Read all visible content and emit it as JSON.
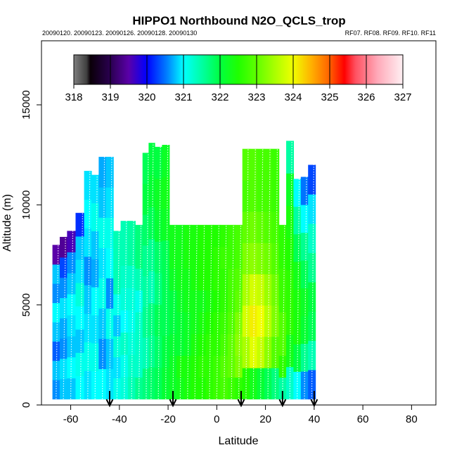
{
  "chart_data": {
    "type": "heatmap",
    "title": "HIPPO1 Northbound N2O_QCLS_trop",
    "subtitle_left": "20090120. 20090123. 20090126. 20090128. 20090130",
    "subtitle_right": "RF07. RF08. RF09. RF10. RF11",
    "xlabel": "Latitude",
    "ylabel": "Altitude (m)",
    "xlim": [
      -72,
      90
    ],
    "ylim": [
      0,
      18200
    ],
    "x_ticks": [
      -60,
      -40,
      -20,
      0,
      20,
      40,
      60,
      80
    ],
    "x_tick_labels": [
      "-60",
      "-40",
      "-20",
      "0",
      "20",
      "40",
      "60",
      "80"
    ],
    "y_ticks": [
      0,
      5000,
      10000,
      15000
    ],
    "y_tick_labels": [
      "0",
      "5000",
      "10000",
      "15000"
    ],
    "colorbar": {
      "min": 318,
      "max": 327,
      "ticks": [
        318,
        319,
        320,
        321,
        322,
        323,
        324,
        325,
        326,
        327
      ],
      "tick_labels": [
        "318",
        "319",
        "320",
        "321",
        "322",
        "323",
        "324",
        "325",
        "326",
        "327"
      ],
      "stops": [
        {
          "v": 318.0,
          "c": "#7f7f7f"
        },
        {
          "v": 318.35,
          "c": "#404040"
        },
        {
          "v": 318.45,
          "c": "#0a0008"
        },
        {
          "v": 319.0,
          "c": "#2a0050"
        },
        {
          "v": 319.5,
          "c": "#5a00a8"
        },
        {
          "v": 320.0,
          "c": "#0000ff"
        },
        {
          "v": 320.55,
          "c": "#0080ff"
        },
        {
          "v": 321.0,
          "c": "#00ffff"
        },
        {
          "v": 321.6,
          "c": "#00ff90"
        },
        {
          "v": 322.0,
          "c": "#00ff40"
        },
        {
          "v": 322.5,
          "c": "#20ff00"
        },
        {
          "v": 323.0,
          "c": "#60ff00"
        },
        {
          "v": 323.5,
          "c": "#aaff00"
        },
        {
          "v": 324.0,
          "c": "#f0ff00"
        },
        {
          "v": 324.5,
          "c": "#ffb000"
        },
        {
          "v": 325.0,
          "c": "#ff6000"
        },
        {
          "v": 325.4,
          "c": "#ff0000"
        },
        {
          "v": 325.7,
          "c": "#ff5060"
        },
        {
          "v": 326.3,
          "c": "#ffa8b8"
        },
        {
          "v": 327.0,
          "c": "#fff0f3"
        }
      ]
    },
    "arrow_latitudes": [
      -44,
      -18,
      10,
      27,
      40
    ],
    "profile_latitudes": [
      -66,
      -63,
      -60,
      -56,
      -53,
      -50,
      -47,
      -44,
      -41,
      -38,
      -35,
      -32,
      -29,
      -27,
      -24,
      -21,
      -18,
      -15,
      -12,
      -9,
      -6,
      -3,
      0,
      3,
      6,
      9,
      12,
      15,
      18,
      21,
      24,
      27,
      30,
      33,
      36,
      39
    ],
    "max_altitudes": [
      8000,
      8400,
      8700,
      9600,
      11700,
      11500,
      12400,
      12400,
      8700,
      9200,
      9200,
      9000,
      12600,
      13100,
      12900,
      13000,
      9000,
      9000,
      9000,
      9000,
      9000,
      9000,
      9000,
      9000,
      9000,
      9000,
      12800,
      12800,
      12800,
      12800,
      12800,
      9000,
      13200,
      11300,
      11400,
      12000
    ],
    "n2o_ppb": [
      [
        320.6,
        320.8,
        320.4,
        320.8,
        321.0,
        320.6,
        320.8,
        319.5
      ],
      [
        320.8,
        320.9,
        320.6,
        320.7,
        320.9,
        320.6,
        320.3,
        319.4
      ],
      [
        320.8,
        321.0,
        320.8,
        320.9,
        321.0,
        320.8,
        320.6,
        319.6
      ],
      [
        321.0,
        321.1,
        320.8,
        321.0,
        321.2,
        320.9,
        320.8,
        320.2
      ],
      [
        320.9,
        321.1,
        320.9,
        320.8,
        320.6,
        320.9,
        321.0,
        320.9
      ],
      [
        321.0,
        321.1,
        320.9,
        321.0,
        320.7,
        320.8,
        321.1,
        320.9
      ],
      [
        321.0,
        320.6,
        320.8,
        321.1,
        320.9,
        321.1,
        320.8,
        320.7
      ],
      [
        320.9,
        320.8,
        321.1,
        320.6,
        321.0,
        321.1,
        320.9,
        320.8
      ],
      [
        321.1,
        320.9,
        321.2,
        320.8,
        321.1,
        321.4,
        321.4,
        321.4
      ],
      [
        321.2,
        321.1,
        321.3,
        321.0,
        321.2,
        321.3,
        321.4,
        321.4
      ],
      [
        321.4,
        321.3,
        321.2,
        321.1,
        321.2,
        321.3,
        321.5,
        321.5
      ],
      [
        321.6,
        321.3,
        321.3,
        321.3,
        321.1,
        321.4,
        321.7,
        321.7
      ],
      [
        321.7,
        321.4,
        321.6,
        321.5,
        321.6,
        321.8,
        322.0,
        321.9
      ],
      [
        321.8,
        321.6,
        321.7,
        321.4,
        321.6,
        321.9,
        322.1,
        322.0
      ],
      [
        321.9,
        321.8,
        321.9,
        321.7,
        321.8,
        322.1,
        322.2,
        322.0
      ],
      [
        322.1,
        322.0,
        321.9,
        321.9,
        321.9,
        322.2,
        322.3,
        322.2
      ],
      [
        322.2,
        322.2,
        322.1,
        322.0,
        322.0,
        322.2,
        322.3,
        322.3
      ],
      [
        322.3,
        322.4,
        322.1,
        322.1,
        322.2,
        322.3,
        322.3,
        322.3
      ],
      [
        322.4,
        322.4,
        322.2,
        322.2,
        322.3,
        322.3,
        322.4,
        322.4
      ],
      [
        322.5,
        322.5,
        322.4,
        322.3,
        322.3,
        322.4,
        322.4,
        322.4
      ],
      [
        322.5,
        322.6,
        322.5,
        322.4,
        322.3,
        322.5,
        322.5,
        322.5
      ],
      [
        322.6,
        322.6,
        322.6,
        322.5,
        322.4,
        322.5,
        322.5,
        322.5
      ],
      [
        322.7,
        322.7,
        322.6,
        322.6,
        322.5,
        322.6,
        322.6,
        322.5
      ],
      [
        322.8,
        322.9,
        322.8,
        322.7,
        322.6,
        322.6,
        322.7,
        322.6
      ],
      [
        322.7,
        323.0,
        323.0,
        322.9,
        322.8,
        322.8,
        322.7,
        322.7
      ],
      [
        322.6,
        323.2,
        323.3,
        323.2,
        323.0,
        322.9,
        322.8,
        322.8
      ],
      [
        322.5,
        323.5,
        323.8,
        323.5,
        323.2,
        323.0,
        322.8,
        322.9
      ],
      [
        322.3,
        323.9,
        324.1,
        323.8,
        323.3,
        323.1,
        322.9,
        322.9
      ],
      [
        322.1,
        323.7,
        324.0,
        323.7,
        323.2,
        323.0,
        322.8,
        322.8
      ],
      [
        321.9,
        323.3,
        323.6,
        323.4,
        323.1,
        322.9,
        322.8,
        322.8
      ],
      [
        321.7,
        322.9,
        323.2,
        323.1,
        322.9,
        322.8,
        322.7,
        322.7
      ],
      [
        321.5,
        322.6,
        322.9,
        322.9,
        322.7,
        322.7,
        322.6,
        322.6
      ],
      [
        321.3,
        322.3,
        322.6,
        322.6,
        322.5,
        322.4,
        322.2,
        321.5
      ],
      [
        321.0,
        322.0,
        322.4,
        322.4,
        322.3,
        321.9,
        321.5,
        321.0
      ],
      [
        320.6,
        321.6,
        322.1,
        322.2,
        321.9,
        321.6,
        321.0,
        320.5
      ],
      [
        320.4,
        321.4,
        321.9,
        322.0,
        321.6,
        321.3,
        320.9,
        320.3
      ]
    ]
  }
}
